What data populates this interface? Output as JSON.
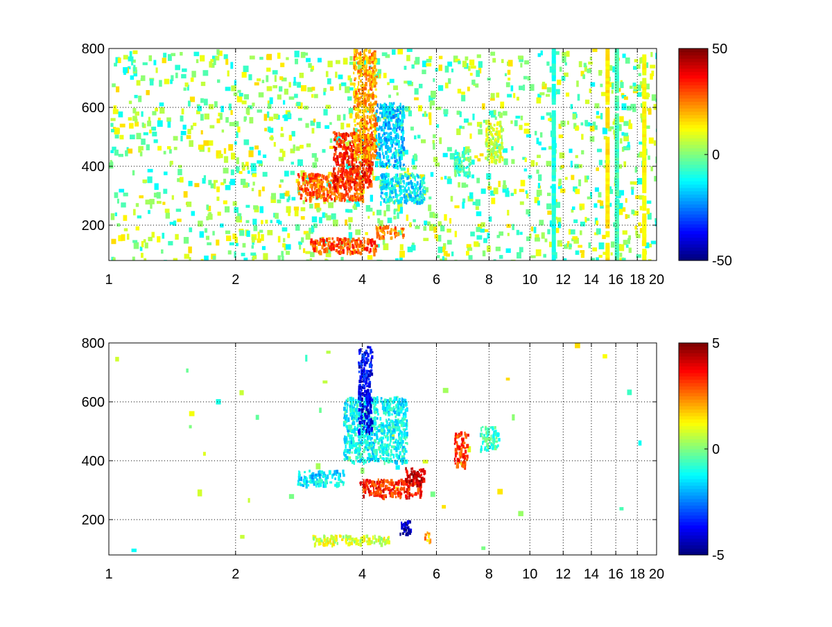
{
  "figure": {
    "background": "#ffffff"
  },
  "chart_data": [
    {
      "type": "heatmap",
      "title": "",
      "xlabel": "",
      "ylabel": "",
      "xlim": [
        1,
        20
      ],
      "ylim": [
        80,
        800
      ],
      "x_scale": "log",
      "x_ticks": [
        1,
        2,
        4,
        6,
        8,
        10,
        12,
        14,
        16,
        18,
        20
      ],
      "x_tick_labels": [
        "1",
        "2",
        "4",
        "6",
        "8",
        "10",
        "12",
        "14",
        "16",
        "18",
        "20"
      ],
      "y_ticks": [
        200,
        400,
        600,
        800
      ],
      "y_tick_labels": [
        "200",
        "400",
        "600",
        "800"
      ],
      "grid": true,
      "colormap": "jet",
      "colorbar": {
        "min": -50,
        "max": 50,
        "ticks": [
          -50,
          0,
          50
        ],
        "tick_labels": [
          "-50",
          "0",
          "50"
        ]
      },
      "missing_value_color": "#ffffff",
      "features": [
        {
          "x": [
            3.0,
            4.3
          ],
          "y": [
            110,
            160
          ],
          "value": 30
        },
        {
          "x": [
            4.3,
            5.0
          ],
          "y": [
            160,
            200
          ],
          "value": 25
        },
        {
          "x": [
            2.8,
            4.0
          ],
          "y": [
            290,
            380
          ],
          "value": 28
        },
        {
          "x": [
            3.4,
            4.2
          ],
          "y": [
            330,
            520
          ],
          "value": 35
        },
        {
          "x": [
            3.8,
            4.3
          ],
          "y": [
            430,
            800
          ],
          "value": 22
        },
        {
          "x": [
            4.3,
            5.0
          ],
          "y": [
            400,
            620
          ],
          "value": -18
        },
        {
          "x": [
            4.4,
            5.6
          ],
          "y": [
            280,
            380
          ],
          "value": -14
        },
        {
          "x": [
            6.6,
            7.2
          ],
          "y": [
            370,
            460
          ],
          "value": -6
        },
        {
          "x": [
            7.8,
            8.6
          ],
          "y": [
            420,
            560
          ],
          "value": 8
        }
      ],
      "stripes": [
        {
          "x": 11.4,
          "value": -10
        },
        {
          "x": 15.3,
          "value": 15
        },
        {
          "x": 16.1,
          "value": -6
        },
        {
          "x": 18.7,
          "value": 12
        }
      ]
    },
    {
      "type": "heatmap",
      "title": "",
      "xlabel": "",
      "ylabel": "",
      "xlim": [
        1,
        20
      ],
      "ylim": [
        80,
        800
      ],
      "x_scale": "log",
      "x_ticks": [
        1,
        2,
        4,
        6,
        8,
        10,
        12,
        14,
        16,
        18,
        20
      ],
      "x_tick_labels": [
        "1",
        "2",
        "4",
        "6",
        "8",
        "10",
        "12",
        "14",
        "16",
        "18",
        "20"
      ],
      "y_ticks": [
        200,
        400,
        600,
        800
      ],
      "y_tick_labels": [
        "200",
        "400",
        "600",
        "800"
      ],
      "grid": true,
      "colormap": "jet",
      "colorbar": {
        "min": -5,
        "max": 5,
        "ticks": [
          -5,
          0,
          5
        ],
        "tick_labels": [
          "-5",
          "0",
          "5"
        ]
      },
      "missing_value_color": "#ffffff",
      "features": [
        {
          "x": [
            3.0,
            4.6
          ],
          "y": [
            120,
            150
          ],
          "value": 0.8
        },
        {
          "x": [
            5.6,
            5.8
          ],
          "y": [
            130,
            160
          ],
          "value": 2.0
        },
        {
          "x": [
            2.8,
            3.6
          ],
          "y": [
            320,
            370
          ],
          "value": -1.5
        },
        {
          "x": [
            3.6,
            5.1
          ],
          "y": [
            400,
            620
          ],
          "value": -1.2
        },
        {
          "x": [
            3.9,
            4.2
          ],
          "y": [
            500,
            790
          ],
          "value": -3.8
        },
        {
          "x": [
            3.9,
            5.5
          ],
          "y": [
            280,
            340
          ],
          "value": 3.5
        },
        {
          "x": [
            5.0,
            5.6
          ],
          "y": [
            320,
            380
          ],
          "value": 4.2
        },
        {
          "x": [
            6.6,
            7.1
          ],
          "y": [
            380,
            500
          ],
          "value": 3.2
        },
        {
          "x": [
            7.6,
            8.4
          ],
          "y": [
            440,
            520
          ],
          "value": -0.8
        },
        {
          "x": [
            4.9,
            5.2
          ],
          "y": [
            150,
            200
          ],
          "value": -4.5
        }
      ],
      "stripes": []
    }
  ]
}
